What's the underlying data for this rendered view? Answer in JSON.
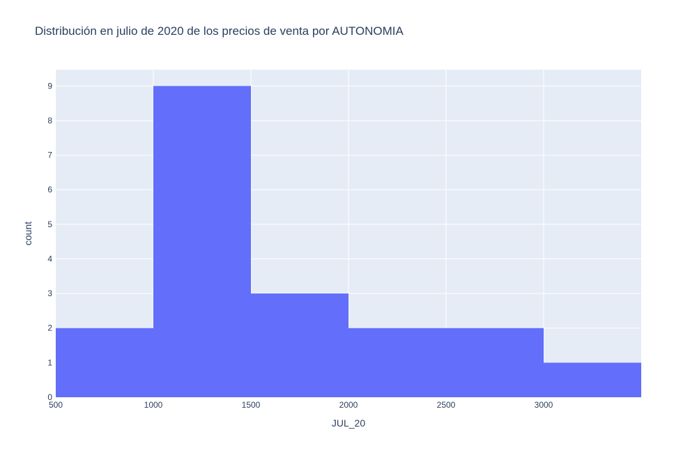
{
  "chart_data": {
    "type": "bar",
    "subtype": "histogram",
    "title": "Distribución en julio de 2020 de los precios de venta por AUTONOMIA",
    "xlabel": "JUL_20",
    "ylabel": "count",
    "bins": [
      {
        "start": 500,
        "end": 1000,
        "count": 2
      },
      {
        "start": 1000,
        "end": 1500,
        "count": 9
      },
      {
        "start": 1500,
        "end": 2000,
        "count": 3
      },
      {
        "start": 2000,
        "end": 2500,
        "count": 2
      },
      {
        "start": 2500,
        "end": 3000,
        "count": 2
      },
      {
        "start": 3000,
        "end": 3500,
        "count": 1
      }
    ],
    "xlim": [
      500,
      3500
    ],
    "ylim": [
      0,
      9.47
    ],
    "xticks": [
      500,
      1000,
      1500,
      2000,
      2500,
      3000
    ],
    "xtick_labels": [
      "500",
      "1000",
      "1500",
      "2000",
      "2500",
      "3000"
    ],
    "yticks": [
      0,
      1,
      2,
      3,
      4,
      5,
      6,
      7,
      8,
      9
    ],
    "ytick_labels": [
      "0",
      "1",
      "2",
      "3",
      "4",
      "5",
      "6",
      "7",
      "8",
      "9"
    ],
    "grid": true,
    "colors": {
      "bar": "#636efa",
      "plot_bg": "#e5ecf6",
      "grid": "#ffffff",
      "text": "#2a3f5f"
    }
  }
}
